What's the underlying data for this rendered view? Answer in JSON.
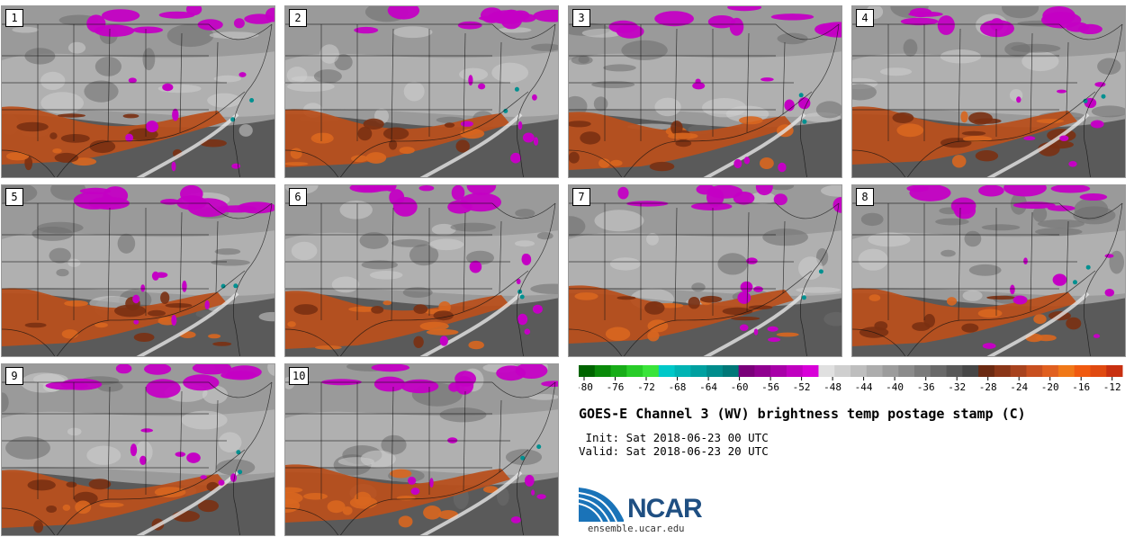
{
  "panels": [
    {
      "label": "1"
    },
    {
      "label": "2"
    },
    {
      "label": "3"
    },
    {
      "label": "4"
    },
    {
      "label": "5"
    },
    {
      "label": "6"
    },
    {
      "label": "7"
    },
    {
      "label": "8"
    },
    {
      "label": "9"
    },
    {
      "label": "10"
    }
  ],
  "colorbar": {
    "colors": [
      "#006400",
      "#0a8a0a",
      "#18ad18",
      "#28cc28",
      "#3ae43a",
      "#00c8c8",
      "#00b4b4",
      "#00a0a0",
      "#008c8c",
      "#007878",
      "#7a007a",
      "#900090",
      "#a800a8",
      "#c000c0",
      "#d800d8",
      "#e0e0e0",
      "#cfcfcf",
      "#bebebe",
      "#adadad",
      "#9c9c9c",
      "#8b8b8b",
      "#7a7a7a",
      "#696969",
      "#585858",
      "#474747",
      "#6b2a12",
      "#8a3618",
      "#a8431e",
      "#c85020",
      "#e06020",
      "#f07818",
      "#f05a10",
      "#e04a10",
      "#c83010"
    ],
    "tick_labels": [
      "-80",
      "-76",
      "-72",
      "-68",
      "-64",
      "-60",
      "-56",
      "-52",
      "-48",
      "-44",
      "-40",
      "-36",
      "-32",
      "-28",
      "-24",
      "-20",
      "-16",
      "-12"
    ]
  },
  "title": "GOES-E Channel 3 (WV) brightness temp postage stamp (C)",
  "init_line": " Init: Sat 2018-06-23 00 UTC",
  "valid_line": "Valid: Sat 2018-06-23 20 UTC",
  "logo_text": "NCAR",
  "site_text": "ensemble.ucar.edu"
}
